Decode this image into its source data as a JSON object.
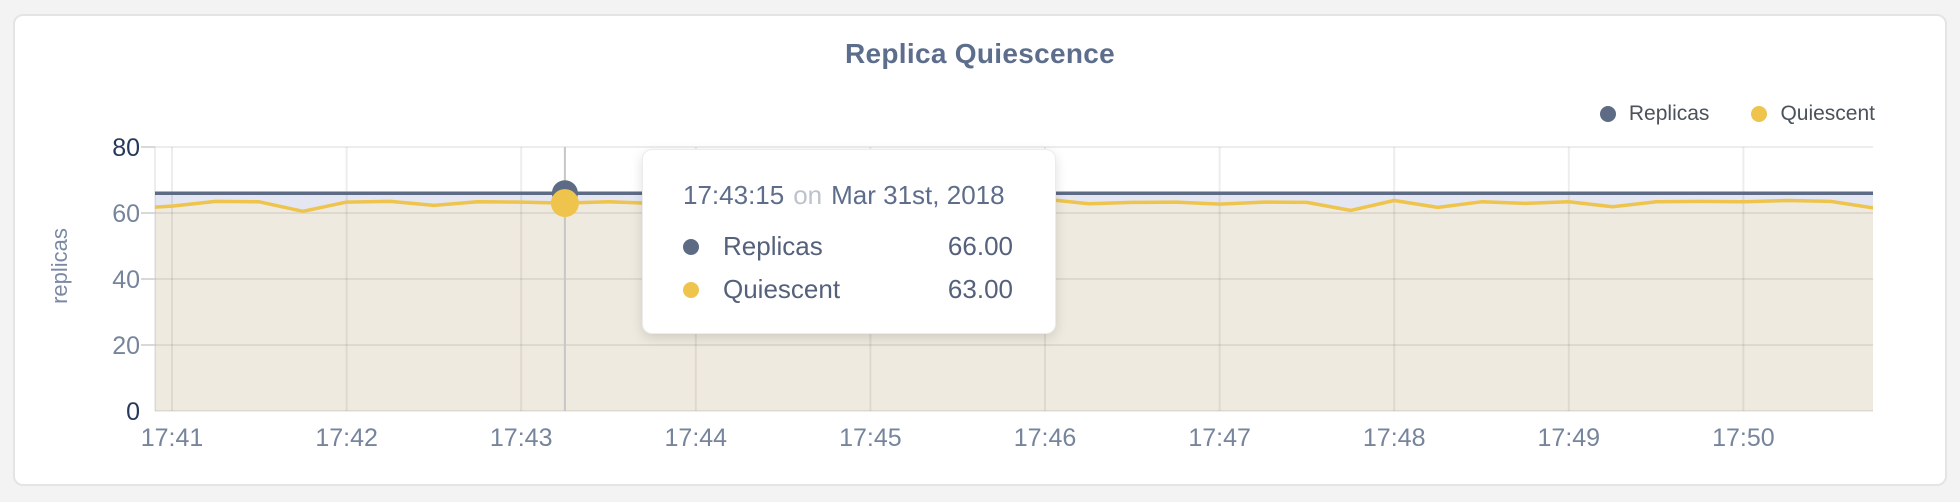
{
  "chart": {
    "title": "Replica Quiescence",
    "ylabel": "replicas"
  },
  "tooltip": {
    "time": "17:43:15",
    "connector": "on",
    "date": "Mar 31st, 2018",
    "rows": [
      {
        "label": "Replicas",
        "value": "66.00"
      },
      {
        "label": "Quiescent",
        "value": "63.00"
      }
    ]
  },
  "colors": {
    "card_background": "#ffffff",
    "page_background": "#f3f3f4",
    "title_text": "#5d6e8d",
    "axis_text": "#76849c",
    "axis_text_emphasis": "#26395c",
    "gridline": "rgba(0,0,0,0.07)",
    "crosshair": "#c6c6c6"
  },
  "chart_data": {
    "type": "area",
    "title": "Replica Quiescence",
    "xlabel": "",
    "ylabel": "replicas",
    "ylim": [
      0,
      80
    ],
    "y_ticks": [
      0,
      20,
      40,
      60,
      80
    ],
    "x_ticks": [
      "17:41",
      "17:42",
      "17:43",
      "17:44",
      "17:45",
      "17:46",
      "17:47",
      "17:48",
      "17:49",
      "17:50"
    ],
    "legend_position": "top-right",
    "grid": true,
    "hover": {
      "time": "17:43:15",
      "date": "Mar 31st, 2018",
      "values": [
        66.0,
        63.0
      ]
    },
    "times": [
      "17:40:45",
      "17:41:00",
      "17:41:15",
      "17:41:30",
      "17:41:45",
      "17:42:00",
      "17:42:15",
      "17:42:30",
      "17:42:45",
      "17:43:00",
      "17:43:15",
      "17:43:30",
      "17:43:45",
      "17:44:00",
      "17:44:15",
      "17:44:30",
      "17:44:45",
      "17:45:00",
      "17:45:15",
      "17:45:30",
      "17:45:45",
      "17:46:00",
      "17:46:15",
      "17:46:30",
      "17:46:45",
      "17:47:00",
      "17:47:15",
      "17:47:30",
      "17:47:45",
      "17:48:00",
      "17:48:15",
      "17:48:30",
      "17:48:45",
      "17:49:00",
      "17:49:15",
      "17:49:30",
      "17:49:45",
      "17:50:00",
      "17:50:15",
      "17:50:30",
      "17:50:45"
    ],
    "series": [
      {
        "name": "Replicas",
        "line_color": "#5e6b85",
        "fill_color": "#e4e7f1",
        "values": [
          66,
          66,
          66,
          66,
          66,
          66,
          66,
          66,
          66,
          66,
          66,
          66,
          66,
          66,
          66,
          66,
          66,
          66,
          66,
          66,
          66,
          66,
          66,
          66,
          66,
          66,
          66,
          66,
          66,
          66,
          66,
          66,
          66,
          66,
          66,
          66,
          66,
          66,
          66,
          66,
          66
        ]
      },
      {
        "name": "Quiescent",
        "line_color": "#eec44d",
        "fill_color": "#efeadf",
        "values": [
          61.3,
          62.1,
          63.5,
          63.4,
          60.5,
          63.3,
          63.5,
          62.3,
          63.4,
          63.3,
          63,
          63.4,
          62.9,
          63.3,
          62.5,
          63.2,
          63.4,
          62.8,
          63.3,
          63.1,
          62.6,
          64.2,
          62.8,
          63.2,
          63.3,
          62.7,
          63.3,
          63.2,
          60.8,
          63.8,
          61.7,
          63.4,
          62.9,
          63.4,
          61.9,
          63.4,
          63.5,
          63.4,
          63.8,
          63.5,
          61.5
        ]
      }
    ]
  }
}
